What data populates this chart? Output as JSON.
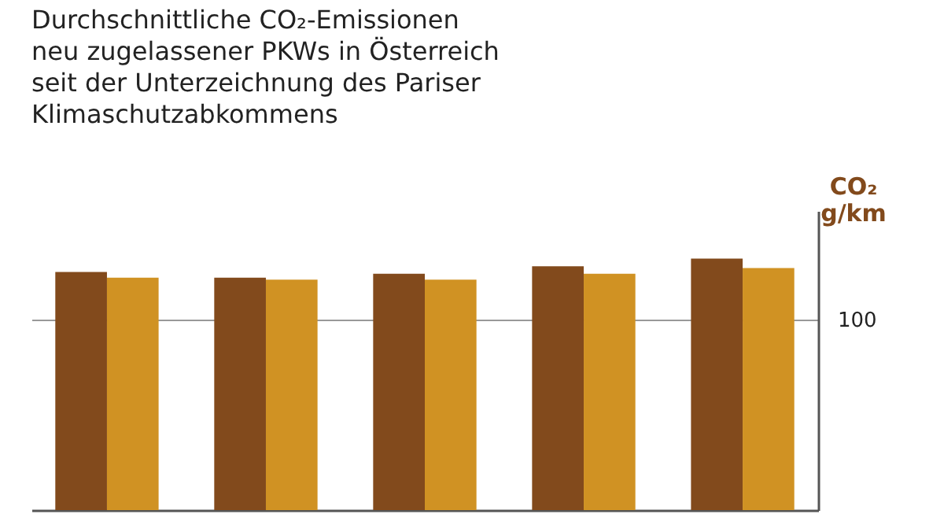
{
  "chart_data": {
    "type": "bar",
    "title": "Durchschnittliche CO₂-Emissionen\nneu zugelassener PKWs in Österreich\nseit der Unterzeichnung des Pariser\nKlimaschutzabkommens",
    "ylabel": "CO₂\ng/km",
    "categories": [
      null,
      null,
      null,
      null,
      null
    ],
    "series": [
      {
        "color": "#824a1c",
        "values": [
          125,
          122,
          124,
          128,
          132
        ]
      },
      {
        "color": "#d09223",
        "values": [
          122,
          121,
          121,
          124,
          127
        ]
      }
    ],
    "ylim": [
      0,
      157
    ],
    "yticks": [
      100
    ],
    "grid": "y",
    "legend": false
  }
}
